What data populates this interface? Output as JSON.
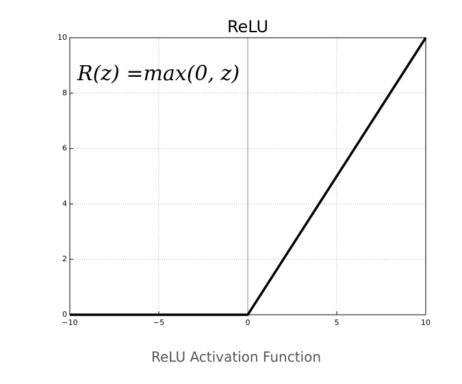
{
  "chart_data": {
    "type": "line",
    "title": "ReLU",
    "caption": "ReLU Activation Function",
    "annotation": "R(z) =max(0,  z)",
    "x": [
      -10,
      0,
      10
    ],
    "series": [
      {
        "name": "ReLU",
        "color": "#000000",
        "values": [
          0,
          0,
          10
        ]
      }
    ],
    "xlim": [
      -10,
      10
    ],
    "ylim": [
      0,
      10
    ],
    "xticks": [
      {
        "value": -10,
        "label": "−10"
      },
      {
        "value": -5,
        "label": "−5"
      },
      0,
      5,
      10
    ],
    "yticks": [
      0,
      2,
      4,
      6,
      8,
      10
    ],
    "vlines": [
      0
    ],
    "grid": true
  }
}
